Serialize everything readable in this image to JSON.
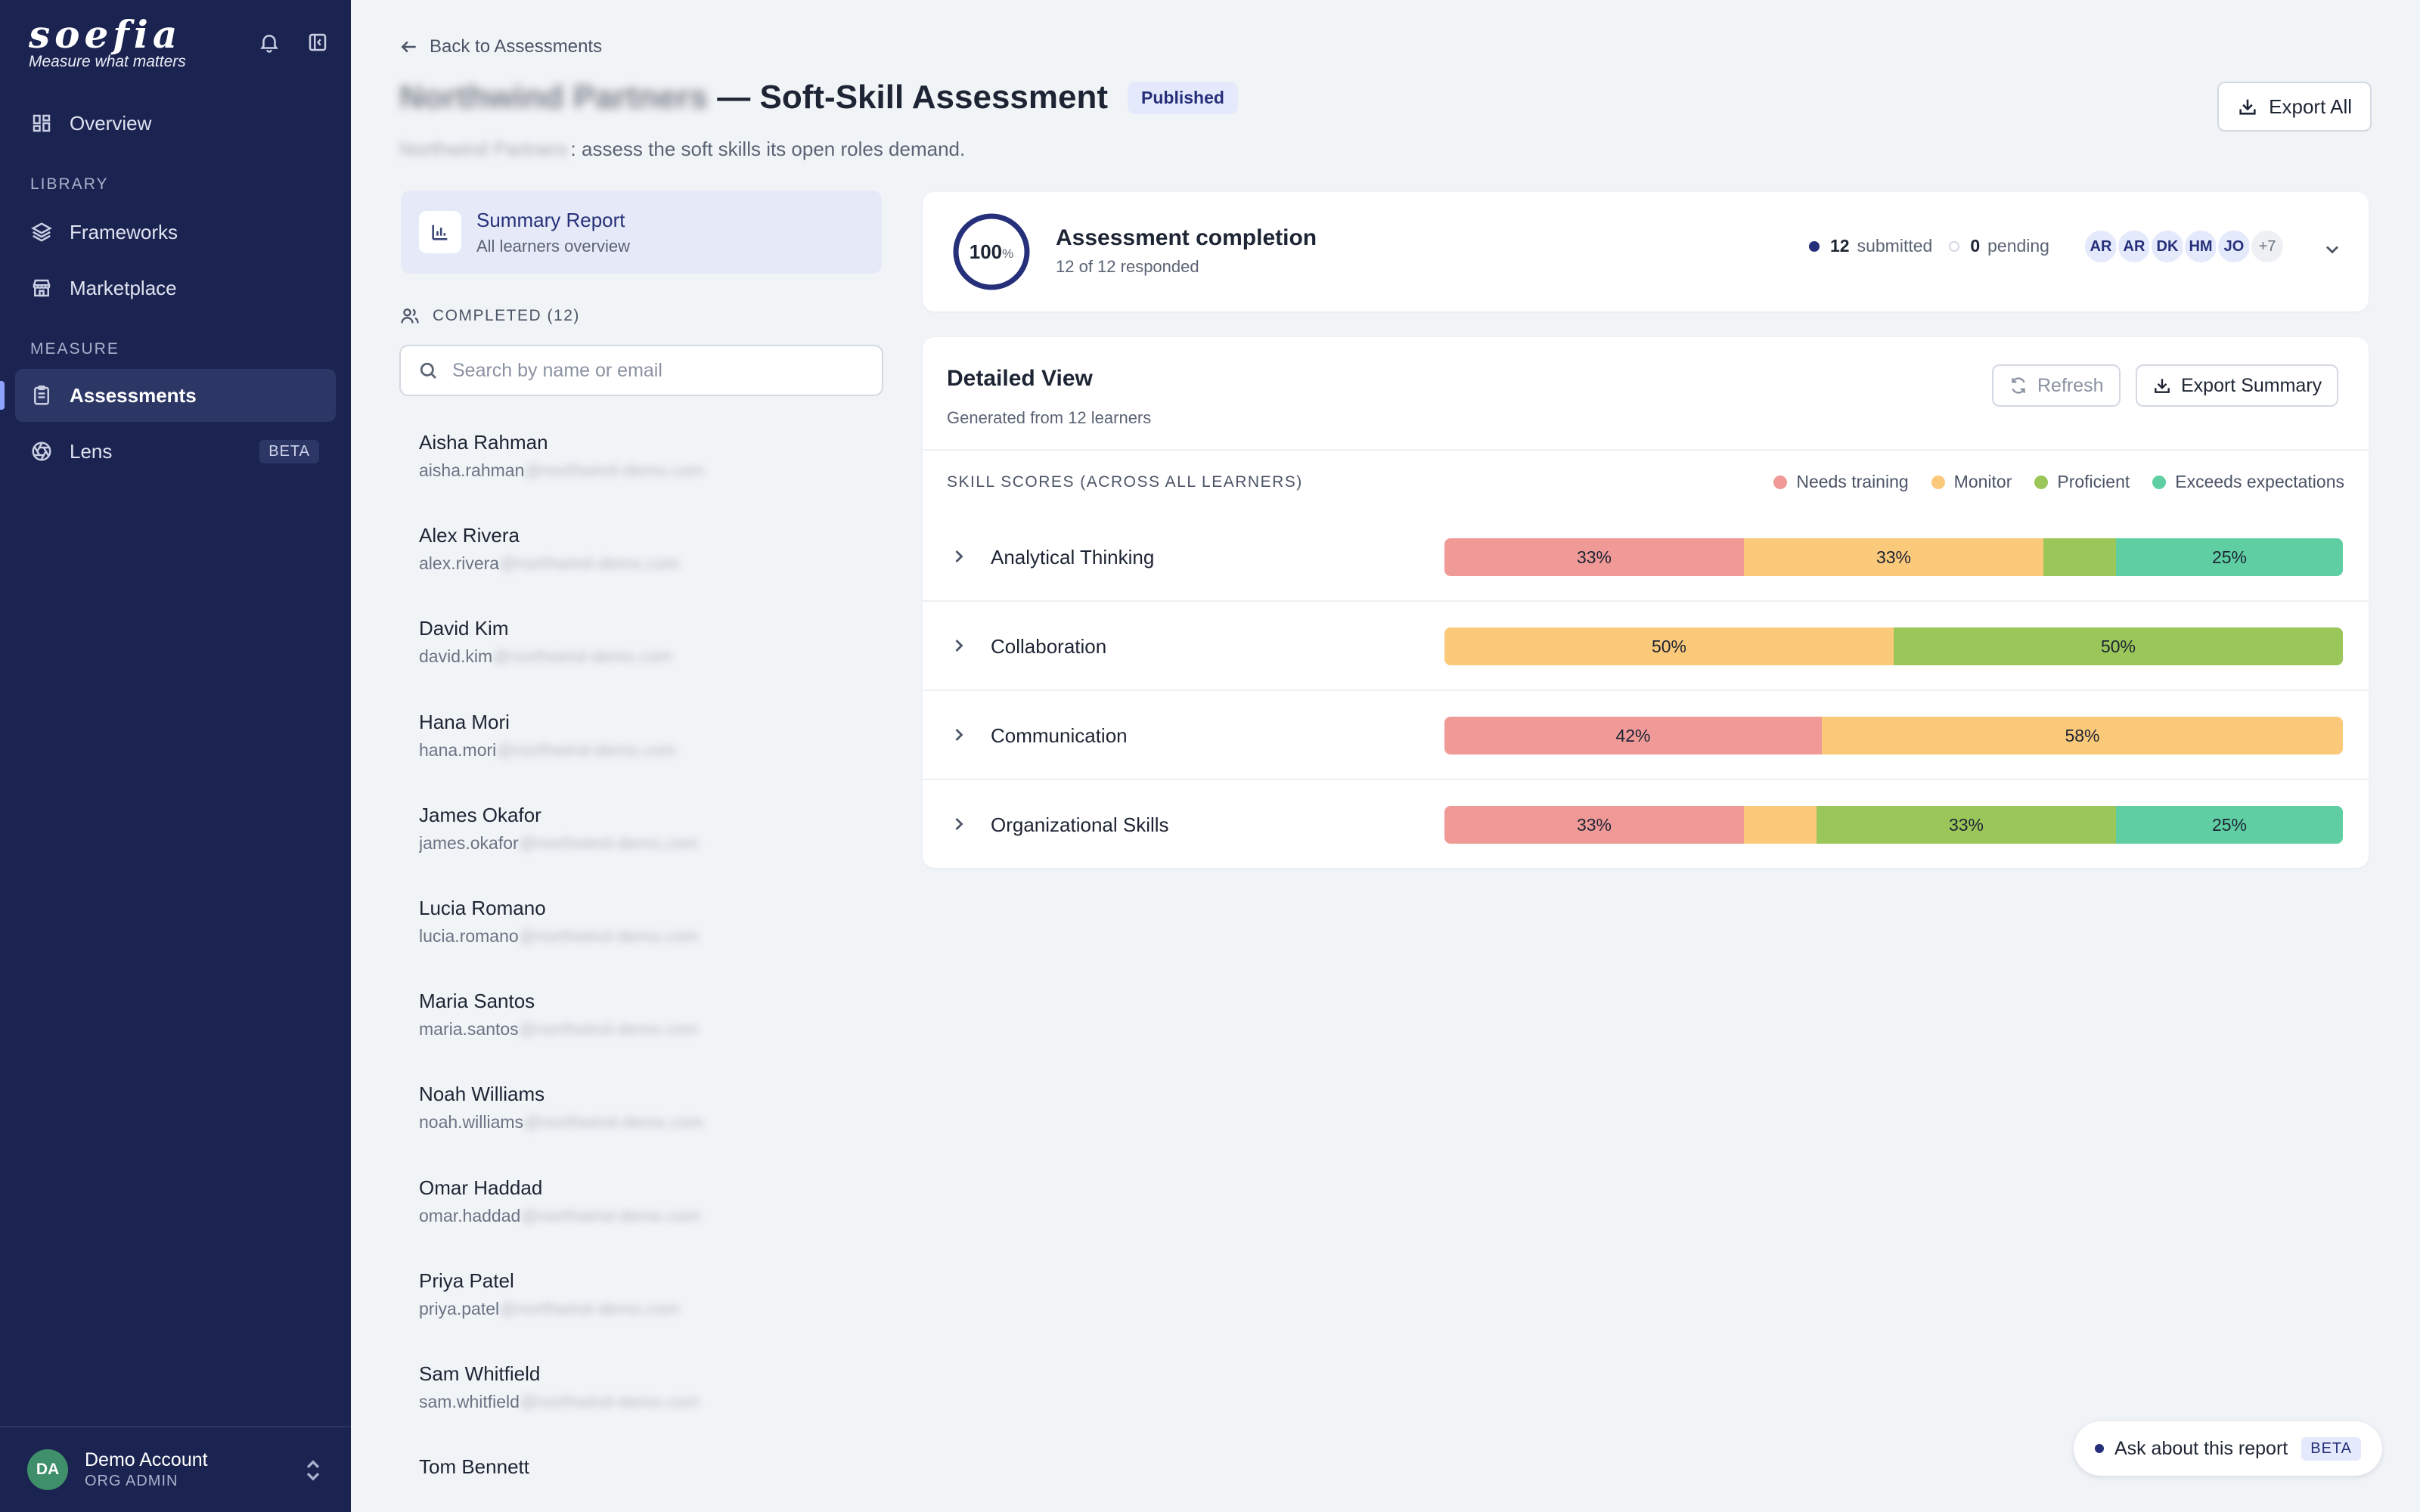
{
  "sidebar": {
    "logo_text": "soefia",
    "tagline": "Measure what matters",
    "nav_overview": "Overview",
    "section_library": "LIBRARY",
    "nav_frameworks": "Frameworks",
    "nav_marketplace": "Marketplace",
    "section_measure": "MEASURE",
    "nav_assessments": "Assessments",
    "nav_lens": "Lens",
    "lens_badge": "BETA",
    "account_initials": "DA",
    "account_name": "Demo Account",
    "account_role": "ORG ADMIN"
  },
  "header": {
    "back_label": "Back to Assessments",
    "title_redacted": "Northwind Partners",
    "title": "— Soft-Skill Assessment",
    "status_badge": "Published",
    "subtitle_redacted": "Northwind Partners",
    "subtitle": ": assess the soft skills its open roles demand.",
    "export_all": "Export All"
  },
  "learners": {
    "summary_title": "Summary Report",
    "summary_sub": "All learners overview",
    "completed_label": "COMPLETED (12)",
    "search_placeholder": "Search by name or email",
    "email_domain_redacted": "@northwind-demo.com",
    "items": [
      {
        "name": "Aisha Rahman",
        "email_prefix": "aisha.rahman"
      },
      {
        "name": "Alex Rivera",
        "email_prefix": "alex.rivera"
      },
      {
        "name": "David Kim",
        "email_prefix": "david.kim"
      },
      {
        "name": "Hana Mori",
        "email_prefix": "hana.mori"
      },
      {
        "name": "James Okafor",
        "email_prefix": "james.okafor"
      },
      {
        "name": "Lucia Romano",
        "email_prefix": "lucia.romano"
      },
      {
        "name": "Maria Santos",
        "email_prefix": "maria.santos"
      },
      {
        "name": "Noah Williams",
        "email_prefix": "noah.williams"
      },
      {
        "name": "Omar Haddad",
        "email_prefix": "omar.haddad"
      },
      {
        "name": "Priya Patel",
        "email_prefix": "priya.patel"
      },
      {
        "name": "Sam Whitfield",
        "email_prefix": "sam.whitfield"
      },
      {
        "name": "Tom Bennett",
        "email_prefix": ""
      }
    ]
  },
  "completion": {
    "percent": 100,
    "percent_label": "100",
    "percent_sign": "%",
    "title": "Assessment completion",
    "responded": "12 of 12 responded",
    "submitted_count": "12",
    "submitted_label": "submitted",
    "pending_count": "0",
    "pending_label": "pending",
    "avatars": [
      "AR",
      "AR",
      "DK",
      "HM",
      "JO"
    ],
    "avatars_more": "+7",
    "ring_color": "#26307a"
  },
  "detail": {
    "title": "Detailed View",
    "subtitle": "Generated from 12 learners",
    "refresh": "Refresh",
    "export_summary": "Export Summary",
    "skills_label": "SKILL SCORES (ACROSS ALL LEARNERS)",
    "legend": [
      {
        "label": "Needs training",
        "color": "#f09a98"
      },
      {
        "label": "Monitor",
        "color": "#fbc97a"
      },
      {
        "label": "Proficient",
        "color": "#9bc75a"
      },
      {
        "label": "Exceeds expectations",
        "color": "#5fcfa3"
      }
    ]
  },
  "chart_data": {
    "type": "bar",
    "orientation": "horizontal-stacked-100",
    "categories": [
      "Analytical Thinking",
      "Collaboration",
      "Communication",
      "Organizational Skills"
    ],
    "series": [
      {
        "name": "Needs training",
        "values": [
          33,
          0,
          42,
          33
        ]
      },
      {
        "name": "Monitor",
        "values": [
          33,
          50,
          58,
          8
        ]
      },
      {
        "name": "Proficient",
        "values": [
          8,
          50,
          0,
          33
        ]
      },
      {
        "name": "Exceeds expectations",
        "values": [
          25,
          0,
          0,
          25
        ]
      }
    ],
    "data_labels": [
      [
        "33%",
        "33%",
        "",
        "25%"
      ],
      [
        "",
        "50%",
        "50%",
        ""
      ],
      [
        "42%",
        "58%",
        "",
        ""
      ],
      [
        "33%",
        "",
        "33%",
        "25%"
      ]
    ],
    "colors": [
      "#f09a98",
      "#fbc97a",
      "#9bc75a",
      "#5fcfa3"
    ],
    "xlim": [
      0,
      100
    ],
    "legend": "top-right"
  },
  "ask": {
    "label": "Ask about this report",
    "badge": "BETA"
  }
}
